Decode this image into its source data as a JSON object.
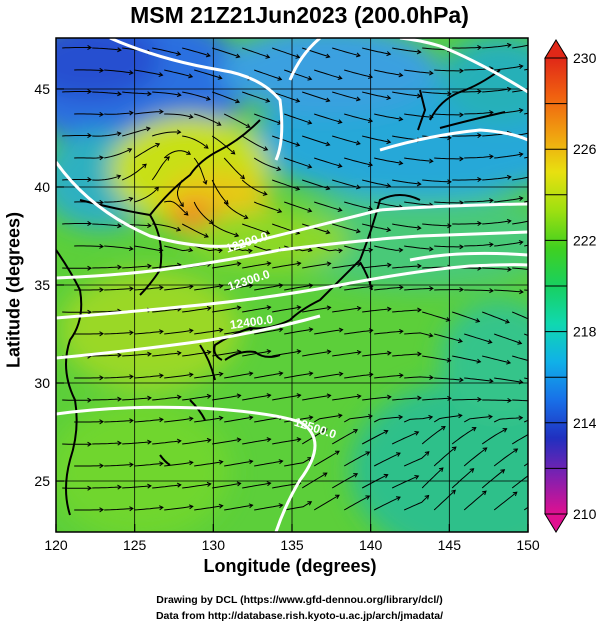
{
  "title": "MSM 21Z21Jun2023 (200.0hPa)",
  "axes": {
    "xlabel": "Longitude (degrees)",
    "ylabel": "Latitude  (degrees)",
    "xticks": [
      "120",
      "125",
      "130",
      "135",
      "140",
      "145",
      "150"
    ],
    "yticks": [
      "25",
      "30",
      "35",
      "40",
      "45"
    ],
    "xlim": [
      120,
      150
    ],
    "ylim": [
      22.4,
      47.6
    ]
  },
  "colorbar": {
    "tick_labels": [
      "230",
      "226",
      "222",
      "218",
      "214",
      "210"
    ],
    "range": [
      210,
      230
    ],
    "colors": [
      "#e01090",
      "#8020b0",
      "#2030c0",
      "#1870e8",
      "#10b0e8",
      "#10d8b0",
      "#18d060",
      "#40d020",
      "#a0e010",
      "#e8e010",
      "#f0a010",
      "#f06010",
      "#e02818"
    ]
  },
  "contours": {
    "labels": [
      "12200.0",
      "12300.0",
      "12400.0",
      "12500.0"
    ],
    "color": "#ffffff"
  },
  "credits": {
    "line1": "Drawing by DCL (https://www.gfd-dennou.org/library/dcl/)",
    "line2": "Data from http://database.rish.kyoto-u.ac.jp/arch/jmadata/"
  }
}
